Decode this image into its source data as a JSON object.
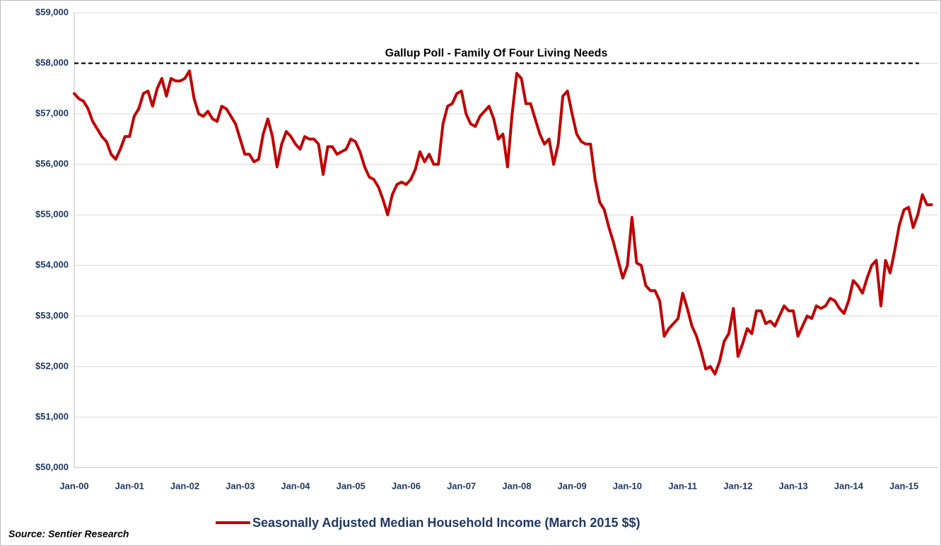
{
  "chart_data": {
    "type": "line",
    "categories": [
      "Jan-00",
      null,
      null,
      null,
      null,
      null,
      null,
      null,
      null,
      null,
      null,
      null,
      "Jan-01",
      null,
      null,
      null,
      null,
      null,
      null,
      null,
      null,
      null,
      null,
      null,
      "Jan-02",
      null,
      null,
      null,
      null,
      null,
      null,
      null,
      null,
      null,
      null,
      null,
      "Jan-03",
      null,
      null,
      null,
      null,
      null,
      null,
      null,
      null,
      null,
      null,
      null,
      "Jan-04",
      null,
      null,
      null,
      null,
      null,
      null,
      null,
      null,
      null,
      null,
      null,
      "Jan-05",
      null,
      null,
      null,
      null,
      null,
      null,
      null,
      null,
      null,
      null,
      null,
      "Jan-06",
      null,
      null,
      null,
      null,
      null,
      null,
      null,
      null,
      null,
      null,
      null,
      "Jan-07",
      null,
      null,
      null,
      null,
      null,
      null,
      null,
      null,
      null,
      null,
      null,
      "Jan-08",
      null,
      null,
      null,
      null,
      null,
      null,
      null,
      null,
      null,
      null,
      null,
      "Jan-09",
      null,
      null,
      null,
      null,
      null,
      null,
      null,
      null,
      null,
      null,
      null,
      "Jan-10",
      null,
      null,
      null,
      null,
      null,
      null,
      null,
      null,
      null,
      null,
      null,
      "Jan-11",
      null,
      null,
      null,
      null,
      null,
      null,
      null,
      null,
      null,
      null,
      null,
      "Jan-12",
      null,
      null,
      null,
      null,
      null,
      null,
      null,
      null,
      null,
      null,
      null,
      "Jan-13",
      null,
      null,
      null,
      null,
      null,
      null,
      null,
      null,
      null,
      null,
      null,
      "Jan-14",
      null,
      null,
      null,
      null,
      null,
      null,
      null,
      null,
      null,
      null,
      null,
      "Jan-15",
      null,
      null,
      null,
      null,
      null,
      null
    ],
    "series": [
      {
        "name": "Seasonally Adjusted Median Household Income (March 2015 $$)",
        "color": "#c00000",
        "values": [
          57400,
          57300,
          57250,
          57100,
          56850,
          56700,
          56550,
          56450,
          56200,
          56100,
          56300,
          56550,
          56550,
          56950,
          57100,
          57400,
          57450,
          57150,
          57500,
          57700,
          57350,
          57700,
          57650,
          57650,
          57700,
          57850,
          57300,
          57000,
          56950,
          57050,
          56900,
          56850,
          57150,
          57100,
          56950,
          56800,
          56500,
          56200,
          56200,
          56050,
          56100,
          56600,
          56900,
          56550,
          55950,
          56400,
          56650,
          56550,
          56400,
          56300,
          56550,
          56500,
          56500,
          56400,
          55800,
          56350,
          56350,
          56200,
          56250,
          56300,
          56500,
          56450,
          56250,
          55950,
          55750,
          55700,
          55550,
          55300,
          55000,
          55400,
          55600,
          55650,
          55600,
          55700,
          55900,
          56250,
          56050,
          56200,
          56000,
          56000,
          56800,
          57150,
          57200,
          57400,
          57450,
          57000,
          56800,
          56750,
          56950,
          57050,
          57150,
          56900,
          56500,
          56600,
          55950,
          57000,
          57800,
          57700,
          57200,
          57200,
          56900,
          56600,
          56400,
          56500,
          56000,
          56400,
          57350,
          57450,
          57000,
          56600,
          56450,
          56400,
          56400,
          55700,
          55250,
          55100,
          54750,
          54450,
          54100,
          53750,
          54000,
          54950,
          54050,
          54000,
          53600,
          53500,
          53500,
          53300,
          52600,
          52750,
          52850,
          52950,
          53450,
          53150,
          52800,
          52600,
          52300,
          51950,
          52000,
          51850,
          52100,
          52500,
          52650,
          53150,
          52200,
          52450,
          52750,
          52650,
          53100,
          53100,
          52850,
          52900,
          52800,
          53000,
          53200,
          53100,
          53100,
          52600,
          52800,
          53000,
          52950,
          53200,
          53150,
          53200,
          53350,
          53300,
          53150,
          53050,
          53300,
          53700,
          53600,
          53450,
          53750,
          54000,
          54100,
          53200,
          54100,
          53850,
          54300,
          54800,
          55100,
          55150,
          54750,
          55000,
          55400,
          55200,
          55200
        ]
      }
    ],
    "reference_line": {
      "value": 58000,
      "label": "Gallup Poll - Family Of Four Living Needs"
    },
    "ylim": [
      50000,
      59000
    ],
    "yticks": [
      {
        "value": 50000,
        "label": "$50,000"
      },
      {
        "value": 51000,
        "label": "$51,000"
      },
      {
        "value": 52000,
        "label": "$52,000"
      },
      {
        "value": 53000,
        "label": "$53,000"
      },
      {
        "value": 54000,
        "label": "$54,000"
      },
      {
        "value": 55000,
        "label": "$55,000"
      },
      {
        "value": 56000,
        "label": "$56,000"
      },
      {
        "value": 57000,
        "label": "$57,000"
      },
      {
        "value": 58000,
        "label": "$58,000"
      },
      {
        "value": 59000,
        "label": "$59,000"
      }
    ],
    "grid": true,
    "legend": "bottom",
    "source": "Source: Sentier Research"
  }
}
